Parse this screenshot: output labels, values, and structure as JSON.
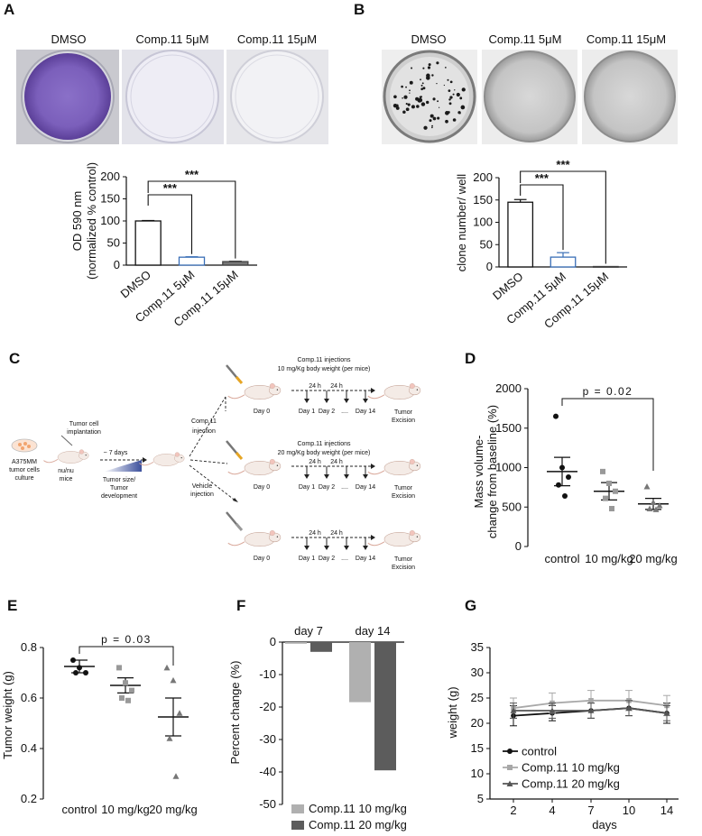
{
  "panels": {
    "A": {
      "letter": "A",
      "images": [
        "DMSO",
        "Comp.11  5μM",
        "Comp.11 15μM"
      ],
      "chart": {
        "type": "bar",
        "ylabel": "OD 590 nm",
        "ylabel2": "(normalized % control)",
        "ylim": [
          0,
          200
        ],
        "yticks": [
          "0",
          "50",
          "100",
          "150",
          "200"
        ],
        "categories": [
          "DMSO",
          "Comp.11  5μM",
          "Comp.11 15μM"
        ],
        "values": [
          100,
          18,
          8
        ],
        "errors": [
          1,
          1,
          1
        ],
        "sig": [
          "***",
          "***"
        ]
      }
    },
    "B": {
      "letter": "B",
      "images": [
        "DMSO",
        "Comp.11  5μM",
        "Comp.11 15μM"
      ],
      "chart": {
        "type": "bar",
        "ylabel": "clone number/ well",
        "ylim": [
          0,
          200
        ],
        "yticks": [
          "0",
          "50",
          "100",
          "150",
          "200"
        ],
        "categories": [
          "DMSO",
          "Comp.11  5μM",
          "Comp.11 15μM"
        ],
        "values": [
          145,
          22,
          1
        ],
        "errors": [
          6,
          10,
          0
        ],
        "sig": [
          "***",
          "***"
        ]
      }
    },
    "C": {
      "letter": "C",
      "cells_line1": "A375MM",
      "cells_line2": "tumor cells",
      "cells_line3": "culture",
      "implant1": "Tumor cell",
      "implant2": "implantation",
      "mice1": "nu/nu",
      "mice2": "mice",
      "days": "~ 7 days",
      "tumor1": "Tumor size/",
      "tumor2": "Tumor",
      "tumor3": "development",
      "comp_inj1": "Comp.11",
      "comp_inj2": "injection",
      "veh_inj1": "Vehicle",
      "veh_inj2": "injection",
      "arm1_line1": "Comp.11 injections",
      "arm1_line2": "10 mg/Kg body weight (per mice)",
      "arm2_line1": "Comp.11 injections",
      "arm2_line2": "20 mg/Kg body weight (per mice)",
      "day0": "Day 0",
      "h24": "24 h",
      "day1": "Day 1",
      "day2": "Day 2",
      "dots": "....",
      "day14": "Day 14",
      "excision1": "Tumor",
      "excision2": "Excision"
    },
    "D": {
      "letter": "D",
      "ylabel1": "Mass volume-",
      "ylabel2": "change from baseline (%)",
      "ylim": [
        0,
        2000
      ],
      "yticks": [
        "0",
        "500",
        "1000",
        "1500",
        "2000"
      ],
      "categories": [
        "control",
        "10 mg/kg",
        "20 mg/kg"
      ],
      "means": [
        950,
        700,
        540
      ],
      "sems": [
        180,
        110,
        70
      ],
      "points": [
        [
          1650,
          1000,
          880,
          780,
          640
        ],
        [
          950,
          800,
          700,
          610,
          480
        ],
        [
          760,
          560,
          520,
          480,
          470
        ]
      ],
      "pval": "p = 0.02"
    },
    "E": {
      "letter": "E",
      "ylabel": "Tumor weight (g)",
      "ylim": [
        0.2,
        0.8
      ],
      "yticks": [
        "0.2",
        "0.4",
        "0.6",
        "0.8"
      ],
      "categories": [
        "control",
        "10 mg/kg",
        "20 mg/kg"
      ],
      "means": [
        0.725,
        0.65,
        0.525
      ],
      "sems": [
        0.025,
        0.03,
        0.075
      ],
      "points": [
        [
          0.75,
          0.72,
          0.7,
          0.7
        ],
        [
          0.72,
          0.66,
          0.63,
          0.6,
          0.59
        ],
        [
          0.72,
          0.67,
          0.54,
          0.44,
          0.29
        ]
      ],
      "pval": "p = 0.03"
    },
    "F": {
      "letter": "F",
      "ylabel": "Percent change (%)",
      "ylim": [
        -50,
        0
      ],
      "yticks": [
        "0",
        "-10",
        "-20",
        "-30",
        "-40",
        "-50"
      ],
      "groups": [
        "day 7",
        "day 14"
      ],
      "series": [
        {
          "name": "Comp.11 10 mg/kg",
          "values": [
            -0.5,
            -18.5
          ],
          "color": "#b0b0b0"
        },
        {
          "name": "Comp.11 20 mg/kg",
          "values": [
            -3,
            -39.5
          ],
          "color": "#5c5c5c"
        }
      ]
    },
    "G": {
      "letter": "G",
      "ylabel": "weight (g)",
      "xlabel": "days",
      "ylim": [
        5,
        35
      ],
      "yticks": [
        "5",
        "10",
        "15",
        "20",
        "25",
        "30",
        "35"
      ],
      "x": [
        2,
        4,
        7,
        10,
        14
      ],
      "series": [
        {
          "name": "control",
          "values": [
            21.5,
            22,
            22.5,
            23,
            22
          ],
          "errors": [
            2,
            1.5,
            1.5,
            1.5,
            2
          ],
          "color": "#111111",
          "marker": "circle"
        },
        {
          "name": "Comp.11 10 mg/kg",
          "values": [
            23,
            24,
            24.5,
            24.5,
            23.5
          ],
          "errors": [
            2,
            2,
            2,
            2,
            2
          ],
          "color": "#a8a8a8",
          "marker": "square"
        },
        {
          "name": "Comp.11 20 mg/kg",
          "values": [
            22.5,
            22.5,
            22.5,
            23,
            22
          ],
          "errors": [
            1.5,
            1.5,
            1.5,
            1.5,
            1.5
          ],
          "color": "#555555",
          "marker": "triangle"
        }
      ]
    }
  }
}
